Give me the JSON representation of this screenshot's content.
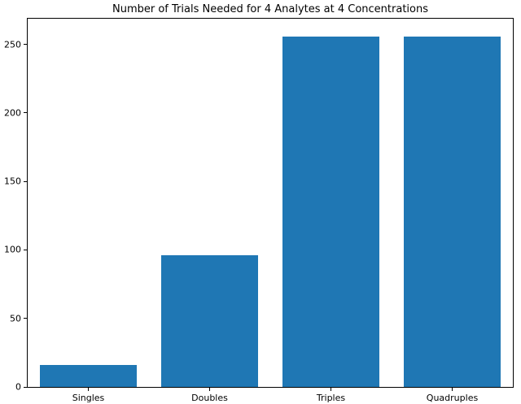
{
  "chart_data": {
    "type": "bar",
    "title": "Number of Trials Needed for 4 Analytes at 4 Concentrations",
    "categories": [
      "Singles",
      "Doubles",
      "Triples",
      "Quadruples"
    ],
    "values": [
      16,
      96,
      256,
      256
    ],
    "xlabel": "",
    "ylabel": "",
    "ylim": [
      0,
      268.8
    ],
    "yticks": [
      0,
      50,
      100,
      150,
      200,
      250
    ],
    "bar_color": "#1f77b4",
    "bar_width_fraction": 0.8,
    "grid": false,
    "legend_position": "none"
  }
}
